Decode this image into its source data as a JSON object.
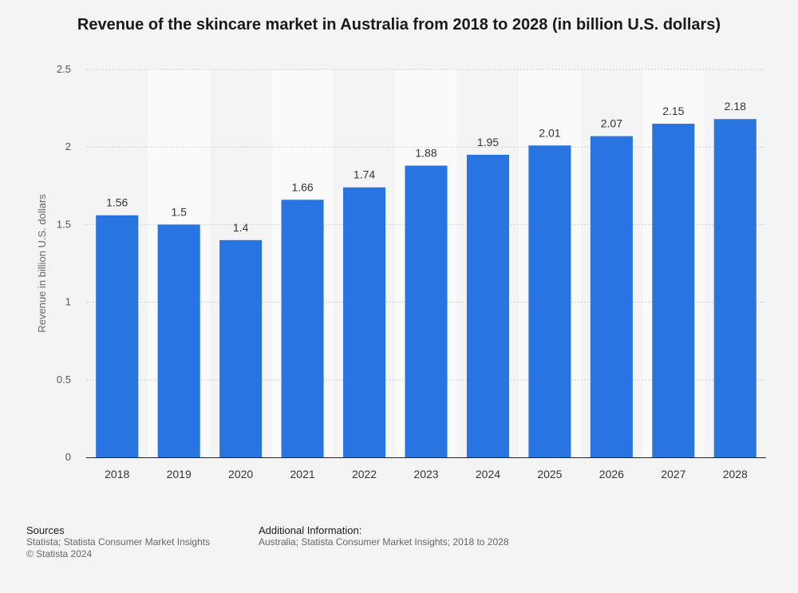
{
  "chart_data": {
    "type": "bar",
    "title": "Revenue of the skincare market in Australia from 2018 to 2028 (in billion U.S. dollars)",
    "xlabel": "",
    "ylabel": "Revenue in billion U.S. dollars",
    "categories": [
      "2018",
      "2019",
      "2020",
      "2021",
      "2022",
      "2023",
      "2024",
      "2025",
      "2026",
      "2027",
      "2028"
    ],
    "values": [
      1.56,
      1.5,
      1.4,
      1.66,
      1.74,
      1.88,
      1.95,
      2.01,
      2.07,
      2.15,
      2.18
    ],
    "value_labels": [
      "1.56",
      "1.5",
      "1.4",
      "1.66",
      "1.74",
      "1.88",
      "1.95",
      "2.01",
      "2.07",
      "2.15",
      "2.18"
    ],
    "ylim": [
      0,
      2.5
    ],
    "yticks": [
      {
        "value": 0,
        "label": "0"
      },
      {
        "value": 0.5,
        "label": "0.5"
      },
      {
        "value": 1,
        "label": "1"
      },
      {
        "value": 1.5,
        "label": "1.5"
      },
      {
        "value": 2,
        "label": "2"
      },
      {
        "value": 2.5,
        "label": "2.5"
      }
    ],
    "grid": true,
    "bar_color": "#2874e0"
  },
  "footer": {
    "sources_heading": "Sources",
    "sources_line1": "Statista; Statista Consumer Market Insights",
    "sources_line2": "© Statista 2024",
    "additional_heading": "Additional Information:",
    "additional_text": "Australia; Statista Consumer Market Insights; 2018 to 2028"
  }
}
